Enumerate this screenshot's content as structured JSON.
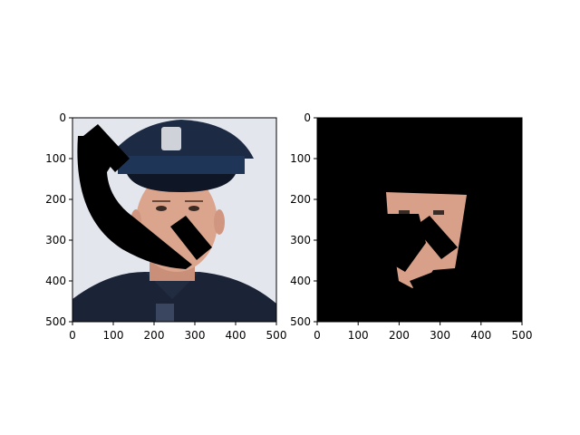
{
  "chart_data": [
    {
      "type": "image",
      "description_id": "left-panel",
      "xlim": [
        0,
        500
      ],
      "ylim": [
        500,
        0
      ],
      "xticks": [
        0,
        100,
        200,
        300,
        400,
        500
      ],
      "yticks": [
        0,
        100,
        200,
        300,
        400,
        500
      ],
      "xtick_labels": [
        "0",
        "100",
        "200",
        "300",
        "400",
        "500"
      ],
      "ytick_labels": [
        "0",
        "100",
        "200",
        "300",
        "400",
        "500"
      ],
      "colors": {
        "background": "#dfe2ec",
        "hat": "#1c2a44",
        "uniform": "#1a2233",
        "skin": "#d9a089",
        "mask": "#000000"
      }
    },
    {
      "type": "image",
      "description_id": "right-panel",
      "xlim": [
        0,
        500
      ],
      "ylim": [
        500,
        0
      ],
      "xticks": [
        0,
        100,
        200,
        300,
        400,
        500
      ],
      "yticks": [
        0,
        100,
        200,
        300,
        400,
        500
      ],
      "xtick_labels": [
        "0",
        "100",
        "200",
        "300",
        "400",
        "500"
      ],
      "ytick_labels": [
        "0",
        "100",
        "200",
        "300",
        "400",
        "500"
      ],
      "colors": {
        "background": "#000000",
        "skin": "#d9a089"
      }
    }
  ]
}
